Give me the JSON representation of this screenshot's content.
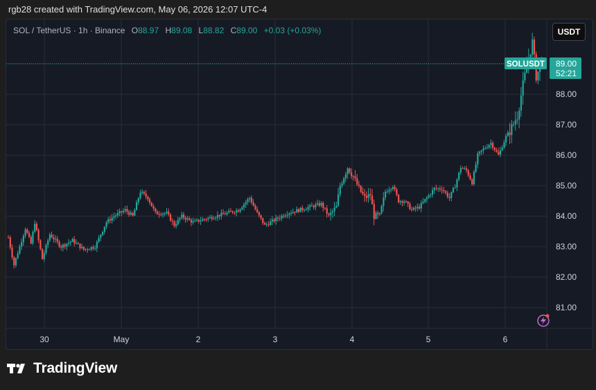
{
  "header": {
    "attribution": "rgb28 created with TradingView.com, May 06, 2026 12:07 UTC-4"
  },
  "legend": {
    "symbol": "SOL / TetherUS · 1h · Binance",
    "o_label": "O",
    "o_value": "88.97",
    "h_label": "H",
    "h_value": "89.08",
    "l_label": "L",
    "l_value": "88.82",
    "c_label": "C",
    "c_value": "89.00",
    "change": "+0.03 (+0.03%)"
  },
  "currency_button": "USDT",
  "footer": {
    "brand": "TradingView",
    "logo_icon": "tradingview-logo-icon"
  },
  "colors": {
    "up": "#26a69a",
    "down": "#ef5350",
    "background": "#161a25",
    "grid": "#2a2e39"
  },
  "chart_data": {
    "type": "candlestick",
    "symbol": "SOL / TetherUS",
    "interval": "1h",
    "exchange": "Binance",
    "x_tick_labels": [
      "30",
      "May",
      "2",
      "3",
      "4",
      "5",
      "6"
    ],
    "y_tick_labels": [
      "81.00",
      "82.00",
      "83.00",
      "84.00",
      "85.00",
      "86.00",
      "87.00",
      "88.00",
      "89.00"
    ],
    "ylim": [
      80.2,
      89.9
    ],
    "last_price_label": {
      "symbol": "SOLUSDT",
      "price": "89.00",
      "countdown": "52:21"
    },
    "grid": true,
    "anchors": [
      [
        0,
        83.3
      ],
      [
        3,
        82.4
      ],
      [
        6,
        83.0
      ],
      [
        9,
        83.6
      ],
      [
        12,
        83.1
      ],
      [
        14,
        83.8
      ],
      [
        18,
        82.6
      ],
      [
        22,
        83.4
      ],
      [
        28,
        83.0
      ],
      [
        34,
        83.2
      ],
      [
        40,
        82.9
      ],
      [
        46,
        83.0
      ],
      [
        52,
        83.8
      ],
      [
        56,
        84.0
      ],
      [
        62,
        84.2
      ],
      [
        66,
        84.0
      ],
      [
        70,
        84.8
      ],
      [
        74,
        84.6
      ],
      [
        78,
        84.1
      ],
      [
        84,
        84.1
      ],
      [
        88,
        83.7
      ],
      [
        92,
        84.0
      ],
      [
        98,
        83.8
      ],
      [
        104,
        83.9
      ],
      [
        110,
        84.0
      ],
      [
        116,
        84.1
      ],
      [
        122,
        84.2
      ],
      [
        128,
        84.6
      ],
      [
        132,
        84.1
      ],
      [
        136,
        83.7
      ],
      [
        142,
        83.9
      ],
      [
        148,
        84.1
      ],
      [
        154,
        84.2
      ],
      [
        160,
        84.3
      ],
      [
        166,
        84.4
      ],
      [
        170,
        84.0
      ],
      [
        174,
        84.3
      ],
      [
        176,
        85.0
      ],
      [
        180,
        85.6
      ],
      [
        183,
        85.3
      ],
      [
        186,
        84.9
      ],
      [
        189,
        84.6
      ],
      [
        192,
        84.7
      ],
      [
        194,
        84.0
      ],
      [
        197,
        84.0
      ],
      [
        200,
        84.8
      ],
      [
        204,
        85.0
      ],
      [
        207,
        84.5
      ],
      [
        210,
        84.5
      ],
      [
        214,
        84.2
      ],
      [
        218,
        84.3
      ],
      [
        222,
        84.6
      ],
      [
        226,
        84.9
      ],
      [
        230,
        84.9
      ],
      [
        234,
        84.6
      ],
      [
        237,
        85.0
      ],
      [
        240,
        85.6
      ],
      [
        243,
        85.5
      ],
      [
        246,
        85.1
      ],
      [
        249,
        86.0
      ],
      [
        252,
        86.2
      ],
      [
        256,
        86.4
      ],
      [
        260,
        86.0
      ],
      [
        264,
        86.6
      ],
      [
        267,
        86.9
      ],
      [
        270,
        87.3
      ],
      [
        273,
        88.3
      ],
      [
        276,
        89.2
      ],
      [
        278,
        89.7
      ],
      [
        280,
        88.6
      ],
      [
        283,
        89.0
      ]
    ]
  }
}
